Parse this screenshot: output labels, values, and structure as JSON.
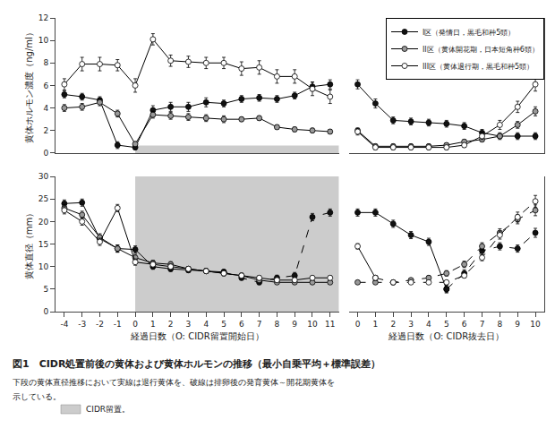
{
  "chart_data": [
    {
      "type": "line",
      "title": "図1　CIDR処置前後の黄体および黄体ホルモンの推移（最小自乗平均＋標準誤差）",
      "annotations": [
        "下段の黄体直径推移において実線は退行黄体を、破線は排卵後の発育黄体～開花期黄体を",
        "示している。"
      ],
      "ylabel": "黄体ホルモン濃度（ng/ml）",
      "x": [
        -4,
        -3,
        -2,
        -1,
        0,
        1,
        2,
        3,
        4,
        5,
        6,
        7,
        8,
        9,
        10,
        11
      ],
      "xlim": [
        -4.5,
        11.5
      ],
      "ylim": [
        0,
        12
      ],
      "yticks": [
        0,
        2,
        4,
        6,
        8,
        10,
        12
      ],
      "grid": false,
      "tick_labels": "y",
      "shade": {
        "x": [
          0,
          11.5
        ],
        "y": [
          0,
          0.66
        ],
        "color": "#cccccc"
      },
      "series": [
        {
          "color": "#111111",
          "marker": "circle",
          "line_style": "solid",
          "values": [
            5.2,
            5.0,
            4.7,
            0.7,
            0.5,
            3.8,
            4.1,
            4.1,
            4.5,
            4.4,
            4.8,
            4.9,
            4.8,
            5.1,
            5.9,
            6.1
          ],
          "errors": [
            0.3,
            0.3,
            0.3,
            0.3,
            0.2,
            0.4,
            0.4,
            0.4,
            0.4,
            0.3,
            0.3,
            0.3,
            0.3,
            0.3,
            0.4,
            0.4
          ]
        },
        {
          "color": "#999999",
          "marker": "circle",
          "line_style": "solid",
          "values": [
            4.0,
            4.1,
            4.5,
            3.5,
            0.8,
            3.4,
            3.3,
            3.2,
            3.1,
            3.0,
            3.0,
            3.1,
            2.3,
            2.1,
            2.0,
            1.9
          ],
          "errors": [
            0.3,
            0.3,
            0.3,
            0.3,
            0.2,
            0.3,
            0.3,
            0.3,
            0.3,
            0.3,
            0.2,
            0.2,
            0.2,
            0.2,
            0.2,
            0.2
          ]
        },
        {
          "color": "#ffffff",
          "marker": "circle",
          "line_style": "solid",
          "values": [
            6.1,
            7.9,
            7.9,
            7.8,
            6.0,
            10.1,
            8.2,
            8.1,
            8.0,
            8.0,
            7.5,
            7.6,
            6.8,
            6.8,
            5.7,
            5.0
          ],
          "errors": [
            0.5,
            0.6,
            0.6,
            0.5,
            0.6,
            0.5,
            0.5,
            0.5,
            0.5,
            0.5,
            0.6,
            0.6,
            0.6,
            0.6,
            0.6,
            0.6
          ]
        }
      ]
    },
    {
      "type": "line",
      "x": [
        0,
        1,
        2,
        3,
        4,
        5,
        6,
        7,
        8,
        9,
        10
      ],
      "xlim": [
        -0.5,
        10.5
      ],
      "ylim": [
        0,
        12
      ],
      "grid": false,
      "tick_labels": false,
      "legend": "upper right",
      "series": [
        {
          "name": "I区（発情日，黒毛和种5頭）",
          "color": "#111111",
          "marker": "circle",
          "line_style": "solid",
          "values": [
            6.1,
            4.4,
            2.9,
            2.8,
            2.7,
            2.6,
            2.4,
            1.8,
            1.5,
            1.5,
            1.5
          ],
          "errors": [
            0.4,
            0.4,
            0.3,
            0.3,
            0.3,
            0.3,
            0.3,
            0.3,
            0.3,
            0.3,
            0.3
          ]
        },
        {
          "name": "II区（黄体開花期，日本短角种6頭）",
          "color": "#999999",
          "marker": "circle",
          "line_style": "solid",
          "values": [
            2.0,
            0.6,
            0.6,
            0.6,
            0.6,
            0.7,
            1.0,
            1.2,
            1.5,
            2.5,
            3.7
          ],
          "errors": [
            0.2,
            0.2,
            0.2,
            0.2,
            0.2,
            0.2,
            0.2,
            0.2,
            0.2,
            0.3,
            0.4
          ]
        },
        {
          "name": "III区（黄体退行期，黒毛和种5頭）",
          "color": "#ffffff",
          "marker": "circle",
          "line_style": "solid",
          "values": [
            1.9,
            0.5,
            0.5,
            0.5,
            0.5,
            0.5,
            0.7,
            1.5,
            2.5,
            4.1,
            6.1
          ],
          "errors": [
            0.3,
            0.2,
            0.2,
            0.2,
            0.2,
            0.2,
            0.2,
            0.3,
            0.4,
            0.5,
            0.6
          ]
        }
      ]
    },
    {
      "type": "line",
      "ylabel": "黄体直径（mm）",
      "xlabel": "経過日数（O: CIDR留置開始日）",
      "x": [
        -4,
        -3,
        -2,
        -1,
        0,
        1,
        2,
        3,
        4,
        5,
        6,
        7,
        8,
        9,
        10,
        11
      ],
      "xlim": [
        -4.5,
        11.5
      ],
      "xticks": [
        -4,
        -3,
        -2,
        -1,
        0,
        1,
        2,
        3,
        4,
        5,
        6,
        7,
        8,
        9,
        10,
        11
      ],
      "ylim": [
        0,
        30
      ],
      "yticks": [
        0,
        5,
        10,
        15,
        20,
        25,
        30
      ],
      "grid": false,
      "shade": {
        "x": [
          0,
          11.5
        ],
        "y": [
          0,
          30
        ],
        "color": "#cccccc",
        "name": "CIDR留置。"
      },
      "series": [
        {
          "color": "#111111",
          "marker": "circle",
          "line_style": "solid",
          "values": [
            24.0,
            24.2,
            16.2,
            14.0,
            13.8,
            10.0,
            9.5,
            9.2,
            9.0,
            8.8,
            null,
            null,
            null,
            null,
            null,
            null
          ],
          "errors": [
            0.8,
            0.8,
            0.8,
            0.8,
            0.8,
            0.6,
            0.6,
            0.5,
            0.5,
            0.5,
            null,
            null,
            null,
            null,
            null,
            null
          ]
        },
        {
          "color": "#111111",
          "marker": "circle",
          "line_style": "dashed",
          "values": [
            null,
            null,
            null,
            null,
            null,
            null,
            null,
            null,
            null,
            8.8,
            7.5,
            6.5,
            7.5,
            8.0,
            21.0,
            22.0
          ],
          "errors": [
            null,
            null,
            null,
            null,
            null,
            null,
            null,
            null,
            null,
            0.5,
            0.5,
            0.5,
            0.6,
            0.7,
            0.8,
            0.8
          ]
        },
        {
          "color": "#999999",
          "marker": "circle",
          "line_style": "solid",
          "values": [
            23.0,
            21.5,
            16.5,
            14.0,
            12.0,
            10.8,
            10.5,
            9.5,
            9.0,
            8.5,
            8.0,
            7.0,
            6.5,
            6.5,
            6.5,
            6.5
          ],
          "errors": [
            0.8,
            0.8,
            0.8,
            0.8,
            0.7,
            0.6,
            0.6,
            0.5,
            0.5,
            0.5,
            0.5,
            0.4,
            0.4,
            0.4,
            0.4,
            0.4
          ]
        },
        {
          "color": "#ffffff",
          "marker": "circle",
          "line_style": "solid",
          "values": [
            22.5,
            20.0,
            15.5,
            23.0,
            11.0,
            10.5,
            10.0,
            9.5,
            9.0,
            8.5,
            8.0,
            7.5,
            7.0,
            7.0,
            7.5,
            7.5
          ],
          "errors": [
            0.8,
            0.8,
            0.8,
            0.8,
            0.7,
            0.6,
            0.6,
            0.5,
            0.5,
            0.5,
            0.5,
            0.5,
            0.5,
            0.5,
            0.5,
            0.5
          ]
        }
      ]
    },
    {
      "type": "line",
      "xlabel": "経過日数（O: CIDR抜去日）",
      "x": [
        0,
        1,
        2,
        3,
        4,
        5,
        6,
        7,
        8,
        9,
        10
      ],
      "xlim": [
        -0.5,
        10.5
      ],
      "xticks": [
        0,
        1,
        2,
        3,
        4,
        5,
        6,
        7,
        8,
        9,
        10
      ],
      "ylim": [
        0,
        30
      ],
      "grid": false,
      "tick_labels": "x",
      "series": [
        {
          "color": "#111111",
          "marker": "circle",
          "line_style": "solid",
          "values": [
            22.0,
            22.0,
            19.5,
            17.0,
            15.5,
            5.0,
            null,
            null,
            null,
            null,
            null
          ],
          "errors": [
            0.8,
            0.8,
            0.8,
            0.8,
            0.8,
            0.8,
            null,
            null,
            null,
            null,
            null
          ]
        },
        {
          "color": "#111111",
          "marker": "circle",
          "line_style": "dashed",
          "values": [
            null,
            null,
            null,
            null,
            null,
            5.0,
            8.5,
            13.5,
            14.5,
            14.0,
            17.5
          ],
          "errors": [
            null,
            null,
            null,
            null,
            null,
            0.8,
            0.8,
            0.8,
            0.8,
            0.8,
            1.0
          ]
        },
        {
          "color": "#999999",
          "marker": "circle",
          "line_style": "dashed",
          "values": [
            6.5,
            6.5,
            6.5,
            7.0,
            7.5,
            8.5,
            10.5,
            14.5,
            17.5,
            20.5,
            22.5
          ],
          "errors": [
            0.4,
            0.4,
            0.4,
            0.4,
            0.5,
            0.6,
            0.7,
            0.8,
            0.9,
            1.0,
            1.2
          ]
        },
        {
          "color": "#ffffff",
          "marker": "circle",
          "line_style": "solid",
          "values": [
            14.5,
            7.5,
            null,
            null,
            null,
            null,
            null,
            null,
            null,
            null,
            null
          ],
          "errors": [
            0.6,
            0.5,
            null,
            null,
            null,
            null,
            null,
            null,
            null,
            null,
            null
          ]
        },
        {
          "color": "#ffffff",
          "marker": "circle",
          "line_style": "dashed",
          "values": [
            null,
            7.5,
            6.5,
            6.5,
            6.5,
            6.5,
            8.0,
            12.0,
            17.0,
            21.0,
            24.5
          ],
          "errors": [
            null,
            0.5,
            0.5,
            0.4,
            0.4,
            0.4,
            0.5,
            0.7,
            0.9,
            1.1,
            1.3
          ]
        }
      ]
    }
  ]
}
